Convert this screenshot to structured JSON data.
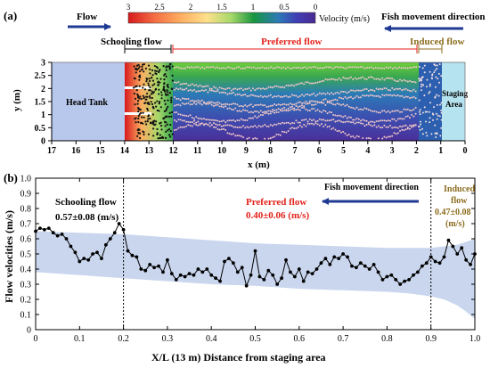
{
  "panel_a": {
    "label": "(a)",
    "flow_label": "Flow",
    "fish_direction_label": "Fish movement direction",
    "velocity_label": "Velocity (m/s)",
    "colorbar_ticks": [
      "3",
      "2.5",
      "2",
      "1.5",
      "1",
      "0.5",
      "0"
    ],
    "colorbar_colors": [
      "#d7191c",
      "#f46d43",
      "#fdae61",
      "#fee08b",
      "#a6d96a",
      "#1a9641",
      "#2c7bb6",
      "#3f3fb5",
      "#4b2991"
    ],
    "zone_schooling": "Schooling flow",
    "zone_preferred": "Preferred flow",
    "zone_induced": "Induced flow",
    "zone_colors": {
      "schooling": "#000000",
      "preferred": "#e3221b",
      "induced": "#8c6d1f"
    },
    "head_tank_label": "Head Tank",
    "staging_area_label": [
      "Staging",
      "Area"
    ],
    "xlabel": "x (m)",
    "ylabel": "y (m)",
    "x_ticks": [
      17,
      16,
      15,
      14,
      13,
      12,
      11,
      10,
      9,
      8,
      7,
      6,
      5,
      4,
      3,
      2,
      1,
      0
    ],
    "y_ticks": [
      0,
      0.5,
      1,
      1.5,
      2,
      2.5,
      3
    ]
  },
  "panel_b": {
    "label": "(b)",
    "fish_direction_label": "Fish movement direction",
    "schooling_title": "Schooling flow",
    "schooling_value": "0.57±0.08 (m/s)",
    "preferred_title": "Preferred flow",
    "preferred_value": "0.40±0.06 (m/s)",
    "induced_title_1": "Induced",
    "induced_title_2": "flow",
    "induced_value_1": "0.47±0.08",
    "induced_value_2": "(m/s)",
    "colors": {
      "preferred": "#e3221b",
      "induced": "#8c6d1f",
      "arrow": "#1f3a93",
      "band": "#c9d6ee"
    }
  },
  "chart_data": {
    "type": "line",
    "xlabel": "X/L (13 m) Distance from staging area",
    "ylabel": "Flow velocities (m/s)",
    "xlim": [
      0,
      1
    ],
    "ylim": [
      0,
      1
    ],
    "x_ticks": [
      "0",
      "0.1",
      "0.2",
      "0.3",
      "0.4",
      "0.5",
      "0.6",
      "0.7",
      "0.8",
      "0.9",
      "1.0"
    ],
    "y_ticks": [
      "0",
      "0.1",
      "0.2",
      "0.3",
      "0.4",
      "0.5",
      "0.6",
      "0.7",
      "0.8",
      "0.9",
      "1.0"
    ],
    "vlines": [
      0.2,
      0.9
    ],
    "series": [
      {
        "x": [
          0,
          0.01,
          0.02,
          0.03,
          0.04,
          0.05,
          0.06,
          0.07,
          0.08,
          0.09,
          0.1,
          0.11,
          0.12,
          0.13,
          0.14,
          0.15,
          0.16,
          0.17,
          0.18,
          0.19,
          0.2,
          0.21,
          0.22,
          0.23,
          0.24,
          0.25,
          0.26,
          0.27,
          0.28,
          0.29,
          0.3,
          0.31,
          0.32,
          0.33,
          0.34,
          0.35,
          0.36,
          0.37,
          0.38,
          0.39,
          0.4,
          0.41,
          0.42,
          0.43,
          0.44,
          0.45,
          0.46,
          0.47,
          0.48,
          0.49,
          0.5,
          0.51,
          0.52,
          0.53,
          0.54,
          0.55,
          0.56,
          0.57,
          0.58,
          0.59,
          0.6,
          0.61,
          0.62,
          0.63,
          0.64,
          0.65,
          0.66,
          0.67,
          0.68,
          0.69,
          0.7,
          0.71,
          0.72,
          0.73,
          0.74,
          0.75,
          0.76,
          0.77,
          0.78,
          0.79,
          0.8,
          0.81,
          0.82,
          0.83,
          0.84,
          0.85,
          0.86,
          0.87,
          0.88,
          0.89,
          0.9,
          0.91,
          0.92,
          0.93,
          0.94,
          0.95,
          0.96,
          0.97,
          0.98,
          0.99,
          1.0
        ],
        "values": [
          0.65,
          0.67,
          0.66,
          0.67,
          0.64,
          0.62,
          0.63,
          0.6,
          0.55,
          0.51,
          0.45,
          0.47,
          0.46,
          0.5,
          0.51,
          0.47,
          0.56,
          0.6,
          0.64,
          0.7,
          0.66,
          0.52,
          0.49,
          0.48,
          0.4,
          0.39,
          0.43,
          0.41,
          0.42,
          0.38,
          0.46,
          0.37,
          0.33,
          0.36,
          0.35,
          0.37,
          0.36,
          0.4,
          0.38,
          0.4,
          0.36,
          0.34,
          0.32,
          0.45,
          0.47,
          0.44,
          0.38,
          0.41,
          0.29,
          0.36,
          0.52,
          0.35,
          0.33,
          0.39,
          0.36,
          0.3,
          0.34,
          0.46,
          0.38,
          0.35,
          0.4,
          0.32,
          0.38,
          0.37,
          0.4,
          0.44,
          0.47,
          0.43,
          0.48,
          0.47,
          0.5,
          0.48,
          0.42,
          0.41,
          0.44,
          0.42,
          0.4,
          0.43,
          0.38,
          0.33,
          0.35,
          0.36,
          0.33,
          0.3,
          0.32,
          0.33,
          0.36,
          0.38,
          0.42,
          0.44,
          0.48,
          0.45,
          0.44,
          0.48,
          0.59,
          0.55,
          0.5,
          0.54,
          0.46,
          0.43,
          0.5
        ]
      }
    ],
    "band": {
      "x": [
        0,
        0.1,
        0.2,
        0.3,
        0.4,
        0.5,
        0.6,
        0.7,
        0.8,
        0.85,
        0.9,
        0.93,
        0.96,
        0.98,
        1.0
      ],
      "upper": [
        0.65,
        0.64,
        0.63,
        0.61,
        0.59,
        0.57,
        0.56,
        0.55,
        0.54,
        0.54,
        0.54,
        0.55,
        0.56,
        0.58,
        0.6
      ],
      "lower": [
        0.38,
        0.36,
        0.34,
        0.32,
        0.3,
        0.29,
        0.27,
        0.26,
        0.25,
        0.24,
        0.22,
        0.2,
        0.16,
        0.12,
        0.07
      ]
    }
  }
}
